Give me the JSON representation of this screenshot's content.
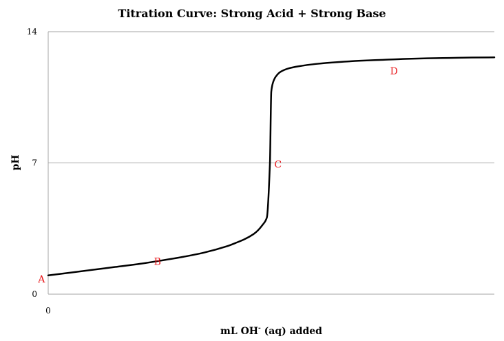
{
  "chart_data": {
    "type": "line",
    "title": "Titration Curve:  Strong Acid + Strong Base",
    "xlabel_main": "mL OH",
    "xlabel_sup": "-",
    "xlabel_rest": " (aq) added",
    "ylabel": "pH",
    "ylim": [
      0,
      14
    ],
    "xlim": [
      0,
      100
    ],
    "y_ticks": [
      "0",
      "7",
      "14"
    ],
    "x_ticks": [
      "0"
    ],
    "grid": true,
    "series": [
      {
        "x": [
          0,
          5,
          10,
          15,
          20,
          25,
          30,
          35,
          40,
          42,
          44,
          46,
          47,
          48,
          49,
          49.7,
          50,
          50.4,
          51,
          52,
          54,
          56,
          60,
          65,
          70,
          75,
          80,
          85,
          90,
          95,
          100
        ],
        "y": [
          1.0,
          1.15,
          1.3,
          1.45,
          1.6,
          1.78,
          1.98,
          2.22,
          2.55,
          2.73,
          2.93,
          3.2,
          3.4,
          3.68,
          4.08,
          7.0,
          10.8,
          11.3,
          11.6,
          11.85,
          12.05,
          12.15,
          12.28,
          12.38,
          12.45,
          12.5,
          12.55,
          12.58,
          12.6,
          12.62,
          12.63
        ]
      }
    ],
    "annotations": [
      {
        "label": "A",
        "x": -1.5,
        "y": 0.8
      },
      {
        "label": "B",
        "x": 24.5,
        "y": 1.75
      },
      {
        "label": "C",
        "x": 51.5,
        "y": 6.92
      },
      {
        "label": "D",
        "x": 77.5,
        "y": 11.9
      }
    ],
    "colors": {
      "line": "#000000",
      "grid": "#a6a6a6",
      "annotation": "#e8171b"
    }
  }
}
